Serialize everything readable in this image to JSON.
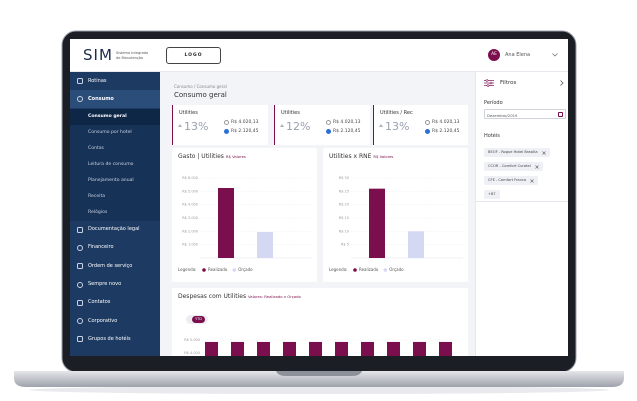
{
  "header": {
    "logo": "SIM",
    "logo_subtitle": "Sistema Integrado de Manutenção",
    "logo_button": "LOGO",
    "user_initials": "AE",
    "user_name": "Ana Elena"
  },
  "sidebar": {
    "items": [
      {
        "label": "Rotinas"
      },
      {
        "label": "Consumo",
        "children": [
          "Consumo geral",
          "Consumo por hotel",
          "Contas",
          "Leitura de consumo",
          "Planejamento anual",
          "Receita",
          "Relógios"
        ]
      },
      {
        "label": "Documentação legal"
      },
      {
        "label": "Financeiro"
      },
      {
        "label": "Ordem de serviço"
      },
      {
        "label": "Sempre novo"
      },
      {
        "label": "Contatos"
      },
      {
        "label": "Corporativo"
      },
      {
        "label": "Grupos de hotéis"
      }
    ]
  },
  "breadcrumb": "Consumo / Consumo geral",
  "page_title": "Consumo geral",
  "kpis": [
    {
      "title": "Utilities",
      "change": "13%",
      "realizado": "R$ 4.020,13",
      "orcado": "R$ 2.120,45"
    },
    {
      "title": "Utilities",
      "change": "12%",
      "realizado": "R$ 4.020,13",
      "orcado": "R$ 2.120,45"
    },
    {
      "title": "Utilities / Rec",
      "change": "13%",
      "realizado": "R$ 4.020,13",
      "orcado": "R$ 2.120,45"
    }
  ],
  "charts": [
    {
      "type": "bar",
      "title": "Gasto | Utilities",
      "subtitle": "R$ Valores",
      "ylim": [
        0,
        6000
      ],
      "yticks": [
        {
          "value": 6000,
          "label": "R$ 6.000"
        },
        {
          "value": 5000,
          "label": "R$ 5.000"
        },
        {
          "value": 4000,
          "label": "R$ 4.000"
        },
        {
          "value": 3000,
          "label": "R$ 3.000"
        },
        {
          "value": 2000,
          "label": "R$ 2.000"
        },
        {
          "value": 1000,
          "label": "R$ 1.000"
        }
      ],
      "legend_title": "Legenda:",
      "series": [
        {
          "name": "Realizado",
          "color": "#7b0f4e",
          "values": [
            5250
          ]
        },
        {
          "name": "Orçado",
          "color": "#d5d8f3",
          "values": [
            1950
          ]
        }
      ]
    },
    {
      "type": "bar",
      "title": "Utilities x RNE",
      "subtitle": "R$ Valores",
      "ylim": [
        0,
        30
      ],
      "yticks": [
        {
          "value": 30,
          "label": "R$ 30"
        },
        {
          "value": 25,
          "label": "R$ 25"
        },
        {
          "value": 20,
          "label": "R$ 20"
        },
        {
          "value": 15,
          "label": "R$ 15"
        },
        {
          "value": 10,
          "label": "R$ 10"
        },
        {
          "value": 5,
          "label": "R$ 5"
        }
      ],
      "legend_title": "Legenda:",
      "series": [
        {
          "name": "Realizado",
          "color": "#7b0f4e",
          "values": [
            26
          ]
        },
        {
          "name": "Orçado",
          "color": "#d5d8f3",
          "values": [
            10
          ]
        }
      ]
    },
    {
      "type": "bar",
      "title": "Despesas com Utilities",
      "subtitle": "Valores: Realizado x Orçado",
      "toggle": "YTD",
      "ylim": [
        0,
        5000
      ],
      "yticks": [
        {
          "value": 5000,
          "label": "R$ 5.000"
        },
        {
          "value": 4000,
          "label": "R$ 4.000"
        }
      ],
      "series": [
        {
          "color": "#7b0f4e",
          "values": [
            4850,
            4850,
            4850,
            4850,
            4850,
            4850,
            4850,
            4850,
            4850,
            4850
          ]
        }
      ]
    }
  ],
  "filters": {
    "title": "Filtros",
    "period_label": "Período",
    "period_value": "Dezembro/2019",
    "hotels_label": "Hotéis",
    "hotels": [
      "BEOF - Rogue Hotel Brasília",
      "CCOR - Comfort Curatel",
      "CFE - Comfort Franca"
    ],
    "more": "+87"
  }
}
